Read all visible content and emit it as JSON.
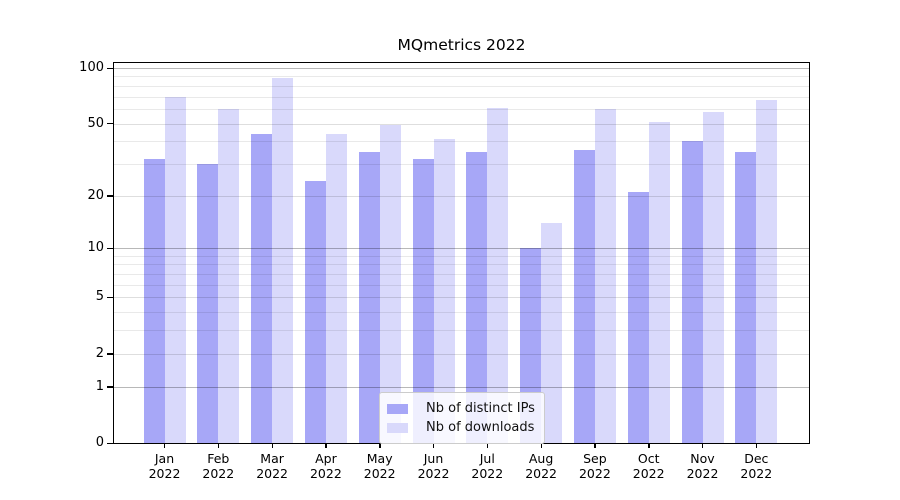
{
  "chart_data": {
    "type": "bar",
    "title": "MQmetrics 2022",
    "categories": [
      "Jan",
      "Feb",
      "Mar",
      "Apr",
      "May",
      "Jun",
      "Jul",
      "Aug",
      "Sep",
      "Oct",
      "Nov",
      "Dec"
    ],
    "x_tick_second_line": "2022",
    "series": [
      {
        "name": "Nb of distinct IPs",
        "color": "#a7a7f7",
        "values": [
          32,
          30,
          44,
          24,
          35,
          32,
          35,
          10,
          36,
          21,
          40,
          35
        ]
      },
      {
        "name": "Nb of downloads",
        "color": "#d9d9fb",
        "values": [
          70,
          60,
          88,
          44,
          49,
          41,
          61,
          14,
          60,
          51,
          58,
          67
        ]
      }
    ],
    "yscale": "log1p-symlog",
    "ylim": [
      0,
      100
    ],
    "yticks_labeled": [
      0,
      1,
      2,
      5,
      10,
      20,
      50,
      100
    ],
    "gridlines_dark": [
      1,
      10,
      100
    ],
    "gridlines_sub": [
      2,
      5,
      20,
      50
    ],
    "gridlines_minor": [
      3,
      4,
      6,
      7,
      8,
      9,
      30,
      40,
      60,
      70,
      80,
      90
    ],
    "grid_on": true,
    "legend_position": "lower center",
    "background_color": "#ffffff",
    "axes_edge_color": "#000000"
  }
}
